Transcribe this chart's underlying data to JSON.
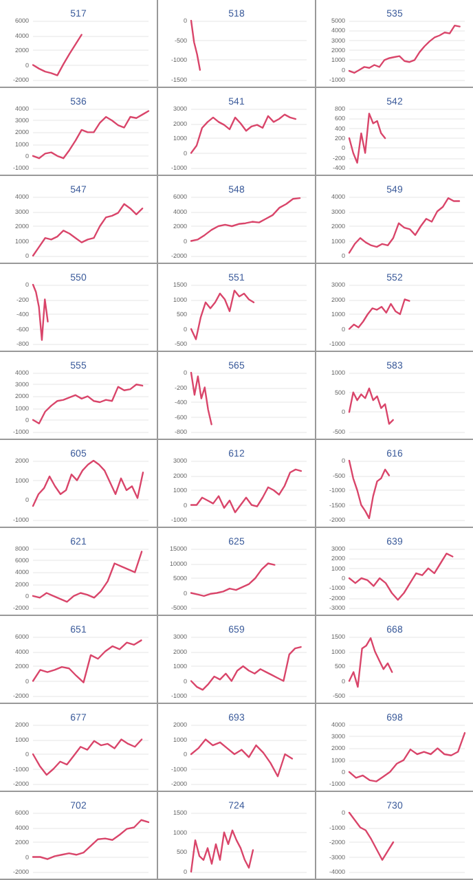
{
  "chart_data": [
    {
      "type": "line",
      "title": "517",
      "color": "#d9456a",
      "grid": "y",
      "tick_labels": "y",
      "ylim": [
        -2000,
        6000
      ],
      "yticks": [
        -2000,
        0,
        2000,
        4000,
        6000
      ],
      "categories": [
        null,
        null,
        null,
        null,
        null,
        null,
        null,
        null,
        null,
        null,
        null,
        null,
        null,
        null,
        null,
        null,
        null,
        null,
        null,
        null
      ],
      "values": [
        0,
        -500,
        -900,
        -1100,
        -1400,
        100,
        1500,
        2800,
        4100,
        null,
        null,
        null,
        null,
        null,
        null,
        null,
        null,
        null,
        null,
        null
      ]
    },
    {
      "type": "line",
      "title": "518",
      "color": "#d9456a",
      "grid": "y",
      "tick_labels": "y",
      "ylim": [
        -1500,
        0
      ],
      "yticks": [
        -1500,
        -1000,
        -500,
        0
      ],
      "categories": [
        null,
        null,
        null,
        null,
        null,
        null,
        null,
        null,
        null,
        null,
        null,
        null,
        null,
        null,
        null,
        null,
        null,
        null,
        null,
        null,
        null,
        null,
        null,
        null,
        null,
        null,
        null,
        null,
        null,
        null,
        null,
        null,
        null,
        null,
        null,
        null,
        null,
        null,
        null,
        null
      ],
      "values": [
        0,
        -550,
        -850,
        -1250,
        null,
        null,
        null,
        null,
        null,
        null,
        null,
        null,
        null,
        null,
        null,
        null,
        null,
        null,
        null,
        null,
        null,
        null,
        null,
        null,
        null,
        null,
        null,
        null,
        null,
        null,
        null,
        null,
        null,
        null,
        null,
        null,
        null,
        null,
        null,
        null
      ]
    },
    {
      "type": "line",
      "title": "535",
      "color": "#d9456a",
      "grid": "y",
      "tick_labels": "y",
      "ylim": [
        -1000,
        5000
      ],
      "yticks": [
        -1000,
        0,
        1000,
        2000,
        3000,
        4000,
        5000
      ],
      "categories": [
        null,
        null,
        null,
        null,
        null,
        null,
        null,
        null,
        null,
        null,
        null,
        null,
        null,
        null,
        null,
        null,
        null,
        null,
        null,
        null,
        null,
        null,
        null,
        null
      ],
      "values": [
        -100,
        -300,
        0,
        300,
        200,
        500,
        300,
        1000,
        1200,
        1300,
        1400,
        900,
        800,
        1000,
        1800,
        2400,
        2900,
        3300,
        3500,
        3800,
        3700,
        4500,
        4400,
        null
      ]
    },
    {
      "type": "line",
      "title": "536",
      "color": "#d9456a",
      "grid": "y",
      "tick_labels": "y",
      "ylim": [
        -1000,
        4000
      ],
      "yticks": [
        -1000,
        0,
        1000,
        2000,
        3000,
        4000
      ],
      "categories": [
        null,
        null,
        null,
        null,
        null,
        null,
        null,
        null,
        null,
        null,
        null,
        null,
        null,
        null,
        null,
        null,
        null,
        null,
        null,
        null
      ],
      "values": [
        0,
        -200,
        200,
        300,
        0,
        -200,
        500,
        1300,
        2200,
        2000,
        2000,
        2800,
        3300,
        3000,
        2600,
        2400,
        3300,
        3200,
        3500,
        3800
      ]
    },
    {
      "type": "line",
      "title": "541",
      "color": "#d9456a",
      "grid": "y",
      "tick_labels": "y",
      "ylim": [
        -1000,
        3000
      ],
      "yticks": [
        -1000,
        0,
        1000,
        2000,
        3000
      ],
      "categories": [
        null,
        null,
        null,
        null,
        null,
        null,
        null,
        null,
        null,
        null,
        null,
        null,
        null,
        null,
        null,
        null,
        null,
        null,
        null,
        null,
        null,
        null
      ],
      "values": [
        0,
        500,
        1700,
        2100,
        2400,
        2100,
        1900,
        1600,
        2400,
        2000,
        1500,
        1800,
        1900,
        1700,
        2500,
        2100,
        2300,
        2600,
        2400,
        2300,
        null,
        null
      ]
    },
    {
      "type": "line",
      "title": "542",
      "color": "#d9456a",
      "grid": "y",
      "tick_labels": "y",
      "ylim": [
        -400,
        800
      ],
      "yticks": [
        -400,
        -200,
        0,
        200,
        400,
        600,
        800
      ],
      "categories": [
        null,
        null,
        null,
        null,
        null,
        null,
        null,
        null,
        null,
        null,
        null,
        null,
        null,
        null,
        null,
        null,
        null,
        null,
        null,
        null,
        null,
        null,
        null,
        null,
        null,
        null,
        null,
        null,
        null,
        null
      ],
      "values": [
        200,
        -100,
        -300,
        300,
        -100,
        700,
        500,
        550,
        300,
        200,
        null,
        null,
        null,
        null,
        null,
        null,
        null,
        null,
        null,
        null,
        null,
        null,
        null,
        null,
        null,
        null,
        null,
        null,
        null,
        null
      ]
    },
    {
      "type": "line",
      "title": "547",
      "color": "#d9456a",
      "grid": "y",
      "tick_labels": "y",
      "ylim": [
        0,
        4000
      ],
      "yticks": [
        0,
        1000,
        2000,
        3000,
        4000
      ],
      "categories": [
        null,
        null,
        null,
        null,
        null,
        null,
        null,
        null,
        null,
        null,
        null,
        null,
        null,
        null,
        null,
        null,
        null,
        null,
        null,
        null
      ],
      "values": [
        0,
        600,
        1200,
        1100,
        1300,
        1700,
        1500,
        1200,
        900,
        1100,
        1200,
        2000,
        2600,
        2700,
        2900,
        3500,
        3200,
        2800,
        3200,
        null
      ]
    },
    {
      "type": "line",
      "title": "548",
      "color": "#d9456a",
      "grid": "y",
      "tick_labels": "y",
      "ylim": [
        -2000,
        6000
      ],
      "yticks": [
        -2000,
        0,
        2000,
        4000,
        6000
      ],
      "categories": [
        null,
        null,
        null,
        null,
        null,
        null,
        null,
        null,
        null,
        null,
        null,
        null,
        null,
        null,
        null,
        null,
        null,
        null
      ],
      "values": [
        0,
        200,
        800,
        1500,
        2000,
        2200,
        2000,
        2300,
        2400,
        2600,
        2500,
        3000,
        3500,
        4500,
        5000,
        5700,
        5800,
        null
      ]
    },
    {
      "type": "line",
      "title": "549",
      "color": "#d9456a",
      "grid": "y",
      "tick_labels": "y",
      "ylim": [
        0,
        4000
      ],
      "yticks": [
        0,
        1000,
        2000,
        3000,
        4000
      ],
      "categories": [
        null,
        null,
        null,
        null,
        null,
        null,
        null,
        null,
        null,
        null,
        null,
        null,
        null,
        null,
        null,
        null,
        null,
        null,
        null,
        null,
        null,
        null
      ],
      "values": [
        200,
        800,
        1200,
        900,
        700,
        600,
        800,
        700,
        1200,
        2200,
        1900,
        1800,
        1400,
        2000,
        2500,
        2300,
        3000,
        3300,
        3900,
        3700,
        3700,
        null
      ]
    },
    {
      "type": "line",
      "title": "550",
      "color": "#d9456a",
      "grid": "y",
      "tick_labels": "y",
      "ylim": [
        -800,
        0
      ],
      "yticks": [
        -800,
        -600,
        -400,
        -200,
        0
      ],
      "categories": [
        null,
        null,
        null,
        null,
        null,
        null,
        null,
        null,
        null,
        null,
        null,
        null,
        null,
        null,
        null,
        null,
        null,
        null,
        null,
        null,
        null,
        null,
        null,
        null,
        null,
        null,
        null,
        null,
        null,
        null,
        null,
        null,
        null,
        null,
        null,
        null,
        null,
        null,
        null,
        null
      ],
      "values": [
        0,
        -100,
        -300,
        -750,
        -200,
        -500,
        null,
        null,
        null,
        null,
        null,
        null,
        null,
        null,
        null,
        null,
        null,
        null,
        null,
        null,
        null,
        null,
        null,
        null,
        null,
        null,
        null,
        null,
        null,
        null,
        null,
        null,
        null,
        null,
        null,
        null,
        null,
        null,
        null,
        null
      ]
    },
    {
      "type": "line",
      "title": "551",
      "color": "#d9456a",
      "grid": "y",
      "tick_labels": "y",
      "ylim": [
        -500,
        1500
      ],
      "yticks": [
        -500,
        0,
        500,
        1000,
        1500
      ],
      "categories": [
        null,
        null,
        null,
        null,
        null,
        null,
        null,
        null,
        null,
        null,
        null,
        null,
        null,
        null,
        null,
        null,
        null,
        null,
        null,
        null,
        null,
        null,
        null,
        null,
        null
      ],
      "values": [
        0,
        -350,
        400,
        900,
        700,
        900,
        1200,
        1000,
        600,
        1300,
        1100,
        1200,
        1000,
        900,
        null,
        null,
        null,
        null,
        null,
        null,
        null,
        null,
        null,
        null,
        null
      ]
    },
    {
      "type": "line",
      "title": "552",
      "color": "#d9456a",
      "grid": "y",
      "tick_labels": "y",
      "ylim": [
        -1000,
        3000
      ],
      "yticks": [
        -1000,
        0,
        1000,
        2000,
        3000
      ],
      "categories": [
        null,
        null,
        null,
        null,
        null,
        null,
        null,
        null,
        null,
        null,
        null,
        null,
        null,
        null,
        null,
        null,
        null,
        null,
        null,
        null,
        null,
        null,
        null,
        null,
        null,
        null
      ],
      "values": [
        0,
        300,
        100,
        500,
        1000,
        1400,
        1300,
        1500,
        1100,
        1700,
        1200,
        1000,
        2000,
        1900,
        null,
        null,
        null,
        null,
        null,
        null,
        null,
        null,
        null,
        null,
        null,
        null
      ]
    },
    {
      "type": "line",
      "title": "555",
      "color": "#d9456a",
      "grid": "y",
      "tick_labels": "y",
      "ylim": [
        -1000,
        4000
      ],
      "yticks": [
        -1000,
        0,
        1000,
        2000,
        3000,
        4000
      ],
      "categories": [
        null,
        null,
        null,
        null,
        null,
        null,
        null,
        null,
        null,
        null,
        null,
        null,
        null,
        null,
        null,
        null,
        null,
        null,
        null,
        null
      ],
      "values": [
        0,
        -300,
        700,
        1200,
        1600,
        1700,
        1900,
        2100,
        1800,
        2000,
        1600,
        1500,
        1700,
        1600,
        2800,
        2500,
        2600,
        3000,
        2900,
        null
      ]
    },
    {
      "type": "line",
      "title": "565",
      "color": "#d9456a",
      "grid": "y",
      "tick_labels": "y",
      "ylim": [
        -800,
        0
      ],
      "yticks": [
        -800,
        -600,
        -400,
        -200,
        0
      ],
      "categories": [
        null,
        null,
        null,
        null,
        null,
        null,
        null,
        null,
        null,
        null,
        null,
        null,
        null,
        null,
        null,
        null,
        null,
        null,
        null,
        null,
        null,
        null,
        null,
        null,
        null,
        null,
        null,
        null,
        null,
        null,
        null,
        null,
        null,
        null,
        null
      ],
      "values": [
        0,
        -300,
        -50,
        -350,
        -200,
        -500,
        -700,
        null,
        null,
        null,
        null,
        null,
        null,
        null,
        null,
        null,
        null,
        null,
        null,
        null,
        null,
        null,
        null,
        null,
        null,
        null,
        null,
        null,
        null,
        null,
        null,
        null,
        null,
        null,
        null
      ]
    },
    {
      "type": "line",
      "title": "583",
      "color": "#d9456a",
      "grid": "y",
      "tick_labels": "y",
      "ylim": [
        -500,
        1000
      ],
      "yticks": [
        -500,
        0,
        500,
        1000
      ],
      "categories": [
        null,
        null,
        null,
        null,
        null,
        null,
        null,
        null,
        null,
        null,
        null,
        null,
        null,
        null,
        null,
        null,
        null,
        null,
        null,
        null,
        null,
        null,
        null,
        null,
        null,
        null,
        null,
        null,
        null,
        null
      ],
      "values": [
        0,
        500,
        300,
        450,
        350,
        600,
        300,
        400,
        100,
        200,
        -300,
        -200,
        null,
        null,
        null,
        null,
        null,
        null,
        null,
        null,
        null,
        null,
        null,
        null,
        null,
        null,
        null,
        null,
        null,
        null
      ]
    },
    {
      "type": "line",
      "title": "605",
      "color": "#d9456a",
      "grid": "y",
      "tick_labels": "y",
      "ylim": [
        -1000,
        2000
      ],
      "yticks": [
        -1000,
        0,
        1000,
        2000
      ],
      "categories": [
        null,
        null,
        null,
        null,
        null,
        null,
        null,
        null,
        null,
        null,
        null,
        null,
        null,
        null,
        null,
        null,
        null,
        null,
        null,
        null,
        null,
        null
      ],
      "values": [
        -300,
        300,
        600,
        1200,
        700,
        300,
        500,
        1300,
        1000,
        1500,
        1800,
        2000,
        1800,
        1500,
        900,
        300,
        1100,
        500,
        700,
        100,
        1400,
        null
      ]
    },
    {
      "type": "line",
      "title": "612",
      "color": "#d9456a",
      "grid": "y",
      "tick_labels": "y",
      "ylim": [
        -1000,
        3000
      ],
      "yticks": [
        -1000,
        0,
        1000,
        2000,
        3000
      ],
      "categories": [
        null,
        null,
        null,
        null,
        null,
        null,
        null,
        null,
        null,
        null,
        null,
        null,
        null,
        null,
        null,
        null,
        null,
        null,
        null,
        null,
        null,
        null
      ],
      "values": [
        0,
        0,
        500,
        300,
        100,
        600,
        -200,
        300,
        -500,
        0,
        500,
        0,
        -100,
        500,
        1200,
        1000,
        700,
        1300,
        2200,
        2400,
        2300,
        null
      ]
    },
    {
      "type": "line",
      "title": "616",
      "color": "#d9456a",
      "grid": "y",
      "tick_labels": "y",
      "ylim": [
        -2000,
        0
      ],
      "yticks": [
        -2000,
        -1500,
        -1000,
        -500,
        0
      ],
      "categories": [
        null,
        null,
        null,
        null,
        null,
        null,
        null,
        null,
        null,
        null,
        null,
        null,
        null,
        null,
        null,
        null,
        null,
        null,
        null,
        null,
        null,
        null,
        null,
        null,
        null,
        null,
        null,
        null,
        null,
        null
      ],
      "values": [
        0,
        -600,
        -1000,
        -1500,
        -1700,
        -1950,
        -1200,
        -700,
        -600,
        -300,
        -500,
        null,
        null,
        null,
        null,
        null,
        null,
        null,
        null,
        null,
        null,
        null,
        null,
        null,
        null,
        null,
        null,
        null,
        null,
        null
      ]
    },
    {
      "type": "line",
      "title": "621",
      "color": "#d9456a",
      "grid": "y",
      "tick_labels": "y",
      "ylim": [
        -2000,
        8000
      ],
      "yticks": [
        -2000,
        0,
        2000,
        4000,
        6000,
        8000
      ],
      "categories": [
        null,
        null,
        null,
        null,
        null,
        null,
        null,
        null,
        null,
        null,
        null,
        null,
        null,
        null,
        null,
        null,
        null,
        null
      ],
      "values": [
        0,
        -300,
        500,
        0,
        -500,
        -1000,
        0,
        500,
        200,
        -300,
        800,
        2500,
        5500,
        5000,
        4500,
        4000,
        7500,
        null
      ]
    },
    {
      "type": "line",
      "title": "625",
      "color": "#d9456a",
      "grid": "y",
      "tick_labels": "y",
      "ylim": [
        -5000,
        15000
      ],
      "yticks": [
        -5000,
        0,
        5000,
        10000,
        15000
      ],
      "categories": [
        null,
        null,
        null,
        null,
        null,
        null,
        null,
        null,
        null,
        null,
        null,
        null,
        null,
        null,
        null,
        null,
        null,
        null,
        null
      ],
      "values": [
        0,
        -500,
        -1000,
        -300,
        0,
        500,
        1500,
        1000,
        2000,
        3000,
        5000,
        8000,
        10000,
        9500,
        null,
        null,
        null,
        null,
        null
      ]
    },
    {
      "type": "line",
      "title": "639",
      "color": "#d9456a",
      "grid": "y",
      "tick_labels": "y",
      "ylim": [
        -3000,
        3000
      ],
      "yticks": [
        -3000,
        -2000,
        -1000,
        0,
        1000,
        2000,
        3000
      ],
      "categories": [
        null,
        null,
        null,
        null,
        null,
        null,
        null,
        null,
        null,
        null,
        null,
        null,
        null,
        null,
        null,
        null,
        null,
        null,
        null,
        null
      ],
      "values": [
        0,
        -500,
        0,
        -200,
        -800,
        0,
        -500,
        -1500,
        -2200,
        -1500,
        -500,
        500,
        300,
        1000,
        500,
        1500,
        2500,
        2200,
        null,
        null
      ]
    },
    {
      "type": "line",
      "title": "651",
      "color": "#d9456a",
      "grid": "y",
      "tick_labels": "y",
      "ylim": [
        -2000,
        6000
      ],
      "yticks": [
        -2000,
        0,
        2000,
        4000,
        6000
      ],
      "categories": [
        null,
        null,
        null,
        null,
        null,
        null,
        null,
        null,
        null,
        null,
        null,
        null,
        null,
        null,
        null,
        null,
        null
      ],
      "values": [
        0,
        1500,
        1200,
        1500,
        1900,
        1700,
        700,
        -200,
        3500,
        3000,
        4000,
        4700,
        4300,
        5200,
        4900,
        5500,
        null
      ]
    },
    {
      "type": "line",
      "title": "659",
      "color": "#d9456a",
      "grid": "y",
      "tick_labels": "y",
      "ylim": [
        -1000,
        3000
      ],
      "yticks": [
        -1000,
        0,
        1000,
        2000,
        3000
      ],
      "categories": [
        null,
        null,
        null,
        null,
        null,
        null,
        null,
        null,
        null,
        null,
        null,
        null,
        null,
        null,
        null,
        null,
        null,
        null,
        null,
        null,
        null
      ],
      "values": [
        0,
        -400,
        -600,
        -200,
        300,
        100,
        500,
        0,
        700,
        1000,
        700,
        500,
        800,
        600,
        400,
        200,
        0,
        1800,
        2200,
        2300,
        null
      ]
    },
    {
      "type": "line",
      "title": "668",
      "color": "#d9456a",
      "grid": "y",
      "tick_labels": "y",
      "ylim": [
        -500,
        1500
      ],
      "yticks": [
        -500,
        0,
        500,
        1000,
        1500
      ],
      "categories": [
        null,
        null,
        null,
        null,
        null,
        null,
        null,
        null,
        null,
        null,
        null,
        null,
        null,
        null,
        null,
        null,
        null,
        null,
        null,
        null,
        null,
        null,
        null,
        null,
        null,
        null,
        null,
        null
      ],
      "values": [
        0,
        300,
        -200,
        1100,
        1200,
        1450,
        1000,
        700,
        400,
        600,
        300,
        null,
        null,
        null,
        null,
        null,
        null,
        null,
        null,
        null,
        null,
        null,
        null,
        null,
        null,
        null,
        null,
        null
      ]
    },
    {
      "type": "line",
      "title": "677",
      "color": "#d9456a",
      "grid": "y",
      "tick_labels": "y",
      "ylim": [
        -2000,
        2000
      ],
      "yticks": [
        -2000,
        -1000,
        0,
        1000,
        2000
      ],
      "categories": [
        null,
        null,
        null,
        null,
        null,
        null,
        null,
        null,
        null,
        null,
        null,
        null,
        null,
        null,
        null,
        null,
        null,
        null
      ],
      "values": [
        0,
        -800,
        -1400,
        -1000,
        -500,
        -700,
        -100,
        500,
        300,
        900,
        600,
        700,
        400,
        1000,
        700,
        500,
        1000,
        null
      ]
    },
    {
      "type": "line",
      "title": "693",
      "color": "#d9456a",
      "grid": "y",
      "tick_labels": "y",
      "ylim": [
        -2000,
        2000
      ],
      "yticks": [
        -2000,
        -1000,
        0,
        1000,
        2000
      ],
      "categories": [
        null,
        null,
        null,
        null,
        null,
        null,
        null,
        null,
        null,
        null,
        null,
        null,
        null,
        null,
        null,
        null,
        null
      ],
      "values": [
        0,
        400,
        1000,
        600,
        800,
        400,
        0,
        300,
        -200,
        600,
        100,
        -600,
        -1500,
        0,
        -300,
        null,
        null
      ]
    },
    {
      "type": "line",
      "title": "698",
      "color": "#d9456a",
      "grid": "y",
      "tick_labels": "y",
      "ylim": [
        -1000,
        4000
      ],
      "yticks": [
        -1000,
        0,
        1000,
        2000,
        3000,
        4000
      ],
      "categories": [
        null,
        null,
        null,
        null,
        null,
        null,
        null,
        null,
        null,
        null,
        null,
        null,
        null,
        null,
        null,
        null,
        null,
        null
      ],
      "values": [
        0,
        -500,
        -300,
        -700,
        -800,
        -400,
        0,
        700,
        1000,
        1900,
        1500,
        1700,
        1500,
        2000,
        1500,
        1400,
        1700,
        3300
      ]
    },
    {
      "type": "line",
      "title": "702",
      "color": "#d9456a",
      "grid": "y",
      "tick_labels": "y",
      "ylim": [
        -2000,
        6000
      ],
      "yticks": [
        -2000,
        0,
        2000,
        4000,
        6000
      ],
      "categories": [
        null,
        null,
        null,
        null,
        null,
        null,
        null,
        null,
        null,
        null,
        null,
        null,
        null,
        null,
        null,
        null,
        null
      ],
      "values": [
        0,
        0,
        -300,
        100,
        300,
        500,
        300,
        600,
        1500,
        2400,
        2500,
        2300,
        3000,
        3800,
        4000,
        5000,
        4700
      ]
    },
    {
      "type": "line",
      "title": "724",
      "color": "#d9456a",
      "grid": "y",
      "tick_labels": "y",
      "ylim": [
        0,
        1500
      ],
      "yticks": [
        0,
        500,
        1000,
        1500
      ],
      "categories": [
        null,
        null,
        null,
        null,
        null,
        null,
        null,
        null,
        null,
        null,
        null,
        null,
        null,
        null,
        null,
        null,
        null,
        null,
        null,
        null,
        null,
        null,
        null,
        null,
        null,
        null,
        null,
        null,
        null
      ],
      "values": [
        0,
        800,
        400,
        300,
        600,
        200,
        700,
        300,
        1000,
        700,
        1050,
        800,
        600,
        300,
        100,
        550,
        null,
        null,
        null,
        null,
        null,
        null,
        null,
        null,
        null,
        null,
        null,
        null,
        null
      ]
    },
    {
      "type": "line",
      "title": "730",
      "color": "#d9456a",
      "grid": "y",
      "tick_labels": "y",
      "ylim": [
        -4000,
        0
      ],
      "yticks": [
        -4000,
        -3000,
        -2000,
        -1000,
        0
      ],
      "categories": [
        null,
        null,
        null,
        null,
        null,
        null,
        null,
        null,
        null,
        null,
        null,
        null,
        null,
        null,
        null,
        null,
        null,
        null,
        null,
        null,
        null,
        null
      ],
      "values": [
        0,
        -500,
        -1000,
        -1200,
        -1800,
        -2500,
        -3200,
        -2600,
        -2000,
        null,
        null,
        null,
        null,
        null,
        null,
        null,
        null,
        null,
        null,
        null,
        null,
        null
      ]
    }
  ]
}
